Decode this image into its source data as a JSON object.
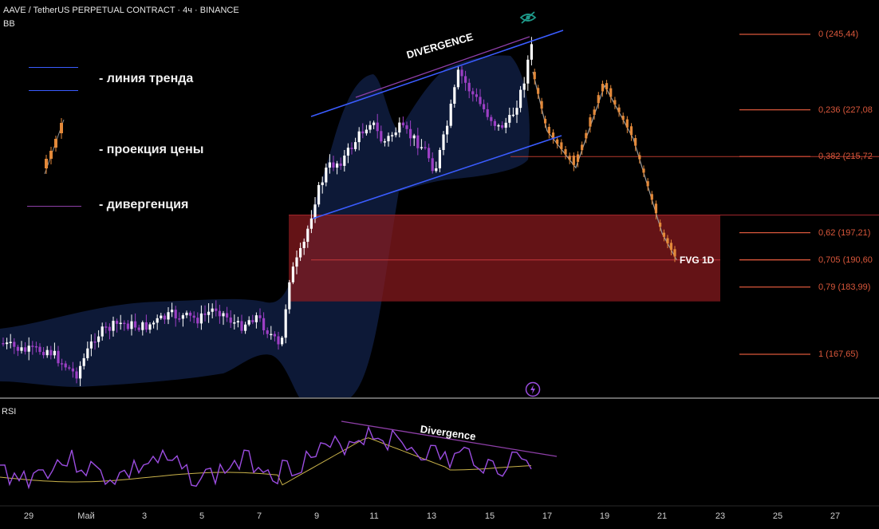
{
  "header": {
    "symbol_line": "AAVE / TetherUS PERPETUAL CONTRACT · 4ч · BINANCE",
    "indicator": "BB"
  },
  "legend": {
    "items": [
      {
        "label": "- линия тренда",
        "color": "#3a5cff"
      },
      {
        "label": "- проекция цены",
        "color": "#e3893a"
      },
      {
        "label": "- дивергенция",
        "color": "#8e3fa8"
      }
    ]
  },
  "fib_levels": [
    {
      "label": "0 (245,44)",
      "value": 245.44
    },
    {
      "label": "0,236 (227,08",
      "value": 227.08
    },
    {
      "label": "0,382 (215,72",
      "value": 215.72
    },
    {
      "label": "0,62 (197,21)",
      "value": 197.21
    },
    {
      "label": "0,705 (190,60",
      "value": 190.6
    },
    {
      "label": "0,79 (183,99)",
      "value": 183.99
    },
    {
      "label": "1 (167,65)",
      "value": 167.65
    }
  ],
  "annotations": {
    "divergence_price": "DIVERGENCE",
    "divergence_rsi": "Divergence",
    "fvg": "FVG 1D"
  },
  "rsi_pane": {
    "label": "RSI"
  },
  "x_axis": {
    "ticks": [
      "29",
      "Май",
      "3",
      "5",
      "7",
      "9",
      "11",
      "13",
      "15",
      "17",
      "19",
      "21",
      "23",
      "25",
      "27"
    ]
  },
  "colors": {
    "background": "#000000",
    "up_candle": "#ffffff",
    "down_candle": "#9c3fc4",
    "projection": "#e3893a",
    "trend_line": "#3a5cff",
    "divergence_line": "#8e3fa8",
    "fib_line": "#d9573b",
    "fvg_zone": "#8b1a1e",
    "bb_band": "#0e1a3a",
    "rsi_line": "#9b4de0",
    "rsi_ma": "#c9b24a"
  },
  "chart_data": {
    "type": "candlestick",
    "title": "AAVE / TetherUS PERPETUAL CONTRACT · 4ч · BINANCE",
    "interval": "4ч",
    "x_ticks": [
      "29",
      "Май",
      "3",
      "5",
      "7",
      "9",
      "11",
      "13",
      "15",
      "17",
      "19",
      "21",
      "23",
      "25",
      "27"
    ],
    "price_range": [
      158,
      250
    ],
    "fvg_zone": {
      "label": "FVG 1D",
      "from_price": 180.5,
      "to_price": 201.5
    },
    "fib_retracement": [
      {
        "level": 0,
        "price": 245.44
      },
      {
        "level": 0.236,
        "price": 227.08
      },
      {
        "level": 0.382,
        "price": 215.72
      },
      {
        "level": 0.62,
        "price": 197.21
      },
      {
        "level": 0.705,
        "price": 190.6
      },
      {
        "level": 0.79,
        "price": 183.99
      },
      {
        "level": 1,
        "price": 167.65
      }
    ],
    "projection_path_prices": [
      {
        "day": "16",
        "price": 238
      },
      {
        "day": "17",
        "price": 222
      },
      {
        "day": "18",
        "price": 213
      },
      {
        "day": "19",
        "price": 233
      },
      {
        "day": "20",
        "price": 220
      },
      {
        "day": "21",
        "price": 197
      },
      {
        "day": "21.5",
        "price": 190.6
      }
    ],
    "rsi": {
      "name": "RSI",
      "divergence_label": "Divergence"
    }
  }
}
